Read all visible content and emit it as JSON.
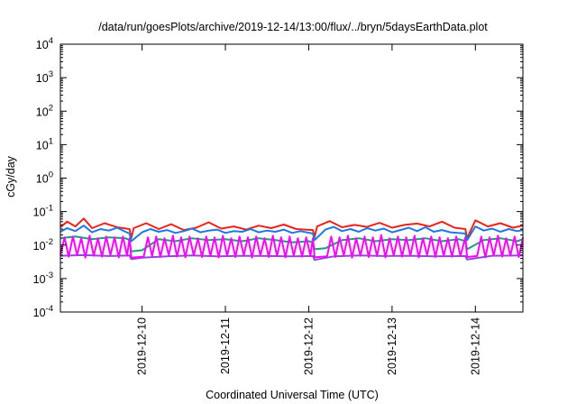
{
  "chart_data": {
    "type": "line",
    "title": "/data/run/goesPlots/archive/2019-12-14/13:00/flux/../bryn/5daysEarthData.plot",
    "xlabel": "Coordinated Universal Time (UTC)",
    "ylabel": "cGy/day",
    "y_scale": "log",
    "ylim": [
      0.0001,
      10000
    ],
    "y_ticks": [
      {
        "value": 0.0001,
        "base": "10",
        "exp": "-4"
      },
      {
        "value": 0.001,
        "base": "10",
        "exp": "-3"
      },
      {
        "value": 0.01,
        "base": "10",
        "exp": "-2"
      },
      {
        "value": 0.1,
        "base": "10",
        "exp": "-1"
      },
      {
        "value": 1,
        "base": "10",
        "exp": "0"
      },
      {
        "value": 10,
        "base": "10",
        "exp": "1"
      },
      {
        "value": 100,
        "base": "10",
        "exp": "2"
      },
      {
        "value": 1000,
        "base": "10",
        "exp": "3"
      },
      {
        "value": 10000,
        "base": "10",
        "exp": "4"
      }
    ],
    "xlim_days": [
      -0.98,
      4.57
    ],
    "x_ticks": [
      {
        "day": 0,
        "label": "2019-12-10"
      },
      {
        "day": 1,
        "label": "2019-12-11"
      },
      {
        "day": 2,
        "label": "2019-12-12"
      },
      {
        "day": 3,
        "label": "2019-12-13"
      },
      {
        "day": 4,
        "label": "2019-12-14"
      }
    ],
    "grid": false,
    "series": [
      {
        "color": "#e8241c",
        "x_day": [
          -0.98,
          -0.9,
          -0.8,
          -0.7,
          -0.6,
          -0.45,
          -0.3,
          -0.15,
          -0.13,
          -0.1,
          0.05,
          0.2,
          0.35,
          0.5,
          0.65,
          0.8,
          0.95,
          1.1,
          1.25,
          1.4,
          1.55,
          1.7,
          1.85,
          2.05,
          2.07,
          2.1,
          2.25,
          2.4,
          2.55,
          2.7,
          2.85,
          3.0,
          3.15,
          3.3,
          3.45,
          3.6,
          3.75,
          3.88,
          3.9,
          4.0,
          4.15,
          4.3,
          4.45,
          4.57
        ],
        "y": [
          0.034,
          0.05,
          0.036,
          0.062,
          0.032,
          0.045,
          0.034,
          0.03,
          0.016,
          0.032,
          0.045,
          0.03,
          0.042,
          0.028,
          0.033,
          0.048,
          0.031,
          0.036,
          0.029,
          0.038,
          0.032,
          0.041,
          0.03,
          0.028,
          0.017,
          0.036,
          0.052,
          0.034,
          0.04,
          0.035,
          0.046,
          0.033,
          0.04,
          0.044,
          0.036,
          0.05,
          0.033,
          0.03,
          0.016,
          0.055,
          0.036,
          0.045,
          0.033,
          0.038
        ]
      },
      {
        "color": "#1a9e77",
        "x_day": [
          -0.98,
          -0.8,
          -0.6,
          -0.4,
          -0.2,
          -0.15,
          -0.13,
          0.0,
          0.2,
          0.4,
          0.6,
          0.8,
          1.0,
          1.2,
          1.4,
          1.6,
          1.8,
          2.0,
          2.05,
          2.07,
          2.2,
          2.4,
          2.6,
          2.8,
          3.0,
          3.2,
          3.4,
          3.6,
          3.8,
          3.88,
          3.9,
          4.1,
          4.3,
          4.5,
          4.57
        ],
        "y": [
          0.016,
          0.018,
          0.015,
          0.017,
          0.016,
          0.014,
          0.0065,
          0.007,
          0.015,
          0.013,
          0.016,
          0.014,
          0.015,
          0.013,
          0.016,
          0.014,
          0.012,
          0.013,
          0.012,
          0.0075,
          0.008,
          0.014,
          0.016,
          0.013,
          0.015,
          0.014,
          0.016,
          0.013,
          0.015,
          0.013,
          0.0075,
          0.014,
          0.016,
          0.013,
          0.015
        ]
      },
      {
        "color": "#8a4bd6",
        "x_day": [
          -0.98,
          -0.7,
          -0.4,
          -0.15,
          -0.13,
          0.0,
          0.3,
          0.6,
          0.9,
          1.2,
          1.5,
          1.8,
          2.05,
          2.07,
          2.3,
          2.6,
          2.9,
          3.2,
          3.5,
          3.88,
          3.9,
          4.2,
          4.57
        ],
        "y": [
          0.0048,
          0.005,
          0.0047,
          0.0049,
          0.0038,
          0.0042,
          0.0046,
          0.0049,
          0.0046,
          0.0048,
          0.0047,
          0.0046,
          0.0047,
          0.0036,
          0.0046,
          0.0049,
          0.0047,
          0.0048,
          0.0046,
          0.0047,
          0.0037,
          0.0048,
          0.0049
        ]
      },
      {
        "color": "#ff00ff",
        "x_day": [
          -0.98,
          -0.93,
          -0.88,
          -0.83,
          -0.78,
          -0.73,
          -0.68,
          -0.63,
          -0.58,
          -0.53,
          -0.48,
          -0.43,
          -0.38,
          -0.33,
          -0.28,
          -0.23,
          -0.18,
          -0.15,
          -0.13,
          0.02,
          0.07,
          0.12,
          0.17,
          0.22,
          0.27,
          0.32,
          0.37,
          0.42,
          0.47,
          0.52,
          0.57,
          0.62,
          0.67,
          0.72,
          0.77,
          0.82,
          0.87,
          0.92,
          0.97,
          1.02,
          1.07,
          1.12,
          1.17,
          1.22,
          1.27,
          1.32,
          1.37,
          1.42,
          1.47,
          1.52,
          1.57,
          1.62,
          1.67,
          1.72,
          1.77,
          1.82,
          1.87,
          1.92,
          1.97,
          2.02,
          2.05,
          2.07,
          2.22,
          2.27,
          2.32,
          2.37,
          2.42,
          2.47,
          2.52,
          2.57,
          2.62,
          2.67,
          2.72,
          2.77,
          2.82,
          2.87,
          2.92,
          2.97,
          3.02,
          3.07,
          3.12,
          3.17,
          3.22,
          3.27,
          3.32,
          3.37,
          3.42,
          3.47,
          3.52,
          3.57,
          3.62,
          3.67,
          3.72,
          3.77,
          3.82,
          3.88,
          3.9,
          4.02,
          4.07,
          4.12,
          4.17,
          4.22,
          4.27,
          4.32,
          4.37,
          4.42,
          4.47,
          4.52,
          4.57
        ],
        "y": [
          0.005,
          0.017,
          0.0045,
          0.018,
          0.005,
          0.016,
          0.0042,
          0.019,
          0.0048,
          0.016,
          0.0045,
          0.018,
          0.005,
          0.017,
          0.0043,
          0.018,
          0.0048,
          0.016,
          0.0042,
          0.0045,
          0.017,
          0.0047,
          0.018,
          0.0044,
          0.016,
          0.005,
          0.019,
          0.0045,
          0.017,
          0.0043,
          0.018,
          0.0049,
          0.016,
          0.0044,
          0.018,
          0.0047,
          0.017,
          0.0043,
          0.019,
          0.0048,
          0.016,
          0.0044,
          0.018,
          0.005,
          0.017,
          0.0042,
          0.018,
          0.0049,
          0.016,
          0.0044,
          0.019,
          0.0047,
          0.017,
          0.0043,
          0.018,
          0.0049,
          0.016,
          0.0045,
          0.017,
          0.0048,
          0.016,
          0.0043,
          0.0046,
          0.018,
          0.0044,
          0.017,
          0.0049,
          0.019,
          0.0042,
          0.016,
          0.0048,
          0.018,
          0.0044,
          0.017,
          0.0047,
          0.02,
          0.0043,
          0.016,
          0.0049,
          0.018,
          0.0045,
          0.017,
          0.0048,
          0.019,
          0.0043,
          0.016,
          0.005,
          0.018,
          0.0044,
          0.017,
          0.0048,
          0.016,
          0.0045,
          0.018,
          0.0047,
          0.017,
          0.0044,
          0.0047,
          0.018,
          0.0043,
          0.017,
          0.0049,
          0.019,
          0.0045,
          0.016,
          0.0048,
          0.018,
          0.0044,
          0.017
        ]
      },
      {
        "color": "#1f78e0",
        "x_day": [
          -0.98,
          -0.9,
          -0.8,
          -0.7,
          -0.6,
          -0.5,
          -0.4,
          -0.3,
          -0.2,
          -0.15,
          -0.13,
          0.0,
          0.1,
          0.2,
          0.3,
          0.4,
          0.5,
          0.6,
          0.7,
          0.8,
          0.9,
          1.0,
          1.1,
          1.2,
          1.3,
          1.4,
          1.5,
          1.6,
          1.7,
          1.8,
          1.9,
          2.05,
          2.07,
          2.2,
          2.3,
          2.4,
          2.5,
          2.6,
          2.7,
          2.8,
          2.9,
          3.0,
          3.1,
          3.2,
          3.3,
          3.4,
          3.5,
          3.6,
          3.7,
          3.88,
          3.9,
          4.0,
          4.1,
          4.2,
          4.3,
          4.4,
          4.5,
          4.57
        ],
        "y": [
          0.025,
          0.032,
          0.026,
          0.038,
          0.024,
          0.03,
          0.027,
          0.033,
          0.025,
          0.022,
          0.013,
          0.024,
          0.03,
          0.025,
          0.028,
          0.023,
          0.026,
          0.031,
          0.024,
          0.027,
          0.029,
          0.023,
          0.026,
          0.025,
          0.03,
          0.024,
          0.027,
          0.025,
          0.029,
          0.023,
          0.026,
          0.022,
          0.014,
          0.029,
          0.035,
          0.026,
          0.03,
          0.025,
          0.032,
          0.027,
          0.031,
          0.024,
          0.028,
          0.033,
          0.026,
          0.034,
          0.025,
          0.028,
          0.024,
          0.022,
          0.014,
          0.036,
          0.027,
          0.031,
          0.025,
          0.03,
          0.026,
          0.028
        ]
      }
    ]
  }
}
